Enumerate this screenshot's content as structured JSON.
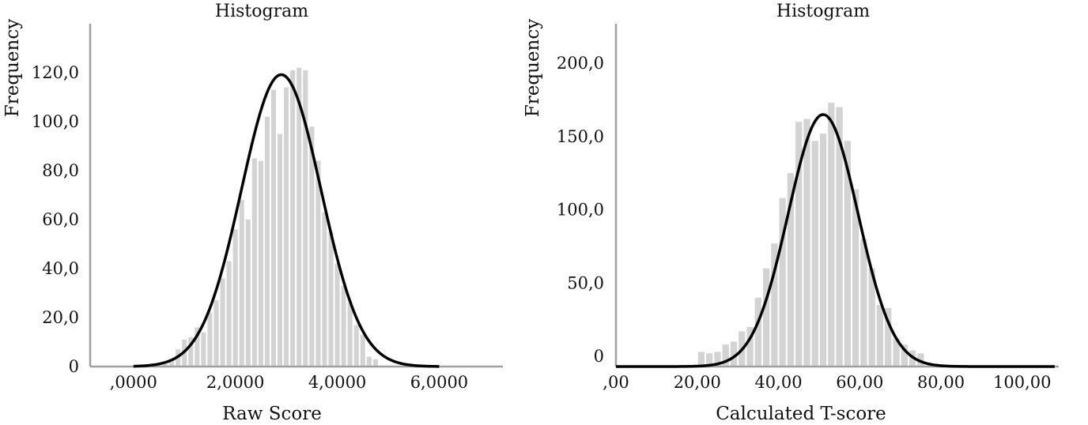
{
  "chart_data": [
    {
      "type": "bar",
      "title": "Histogram",
      "xlabel": "Raw Score",
      "ylabel": "Frequency",
      "xlim": [
        -0.85,
        7.25
      ],
      "ylim": [
        0,
        140
      ],
      "x_ticks": [
        0,
        2,
        4,
        6
      ],
      "x_tick_labels": [
        ",0000",
        "2,0000",
        "4,0000",
        "6,0000"
      ],
      "y_ticks": [
        0,
        20,
        40,
        60,
        80,
        100,
        120
      ],
      "y_tick_labels": [
        "0",
        "20,0",
        "40,0",
        "60,0",
        "80,0",
        "100,0",
        "120,0"
      ],
      "bin_width": 0.125,
      "bars": [
        {
          "x": 0.625,
          "y": 1
        },
        {
          "x": 0.75,
          "y": 3
        },
        {
          "x": 0.875,
          "y": 7
        },
        {
          "x": 1.0,
          "y": 11
        },
        {
          "x": 1.125,
          "y": 12
        },
        {
          "x": 1.25,
          "y": 16
        },
        {
          "x": 1.375,
          "y": 14
        },
        {
          "x": 1.5,
          "y": 22
        },
        {
          "x": 1.625,
          "y": 27
        },
        {
          "x": 1.75,
          "y": 36
        },
        {
          "x": 1.875,
          "y": 43
        },
        {
          "x": 2.0,
          "y": 56
        },
        {
          "x": 2.125,
          "y": 68
        },
        {
          "x": 2.25,
          "y": 60
        },
        {
          "x": 2.375,
          "y": 85
        },
        {
          "x": 2.5,
          "y": 84
        },
        {
          "x": 2.625,
          "y": 102
        },
        {
          "x": 2.75,
          "y": 113
        },
        {
          "x": 2.875,
          "y": 95
        },
        {
          "x": 3.0,
          "y": 114
        },
        {
          "x": 3.125,
          "y": 121
        },
        {
          "x": 3.25,
          "y": 122
        },
        {
          "x": 3.375,
          "y": 121
        },
        {
          "x": 3.5,
          "y": 98
        },
        {
          "x": 3.625,
          "y": 84
        },
        {
          "x": 3.75,
          "y": 63
        },
        {
          "x": 3.875,
          "y": 55
        },
        {
          "x": 4.0,
          "y": 42
        },
        {
          "x": 4.125,
          "y": 33
        },
        {
          "x": 4.25,
          "y": 26
        },
        {
          "x": 4.375,
          "y": 17
        },
        {
          "x": 4.5,
          "y": 13
        },
        {
          "x": 4.625,
          "y": 4
        },
        {
          "x": 4.75,
          "y": 3
        }
      ],
      "curve": {
        "type": "normal",
        "mean": 2.9,
        "sd": 0.78,
        "peak": 119.2,
        "x_from": 0,
        "x_to": 6
      },
      "colors": {
        "bar": "#d3d3d3",
        "curve": "#000000",
        "axis": "#a0a0a0"
      }
    },
    {
      "type": "bar",
      "title": "Histogram",
      "xlabel": "Calculated T-score",
      "ylabel": "Frequency",
      "xlim": [
        0,
        109
      ],
      "ylim": [
        -7,
        227
      ],
      "x_ticks": [
        0,
        20,
        40,
        60,
        80,
        100
      ],
      "x_tick_labels": [
        ",00",
        "20,00",
        "40,00",
        "60,00",
        "80,00",
        "100,00"
      ],
      "y_ticks": [
        0,
        50,
        100,
        150,
        200
      ],
      "y_tick_labels": [
        "0",
        "50,0",
        "100,0",
        "150,0",
        "200,0"
      ],
      "bin_width": 2,
      "bars": [
        {
          "x": 21,
          "y": 3
        },
        {
          "x": 23,
          "y": 2
        },
        {
          "x": 25,
          "y": 3
        },
        {
          "x": 27,
          "y": 8
        },
        {
          "x": 29,
          "y": 10
        },
        {
          "x": 31,
          "y": 17
        },
        {
          "x": 33,
          "y": 20
        },
        {
          "x": 35,
          "y": 40
        },
        {
          "x": 37,
          "y": 60
        },
        {
          "x": 39,
          "y": 77
        },
        {
          "x": 41,
          "y": 108
        },
        {
          "x": 43,
          "y": 125
        },
        {
          "x": 45,
          "y": 160
        },
        {
          "x": 47,
          "y": 162
        },
        {
          "x": 49,
          "y": 147
        },
        {
          "x": 51,
          "y": 152
        },
        {
          "x": 53,
          "y": 173
        },
        {
          "x": 55,
          "y": 170
        },
        {
          "x": 57,
          "y": 147
        },
        {
          "x": 59,
          "y": 114
        },
        {
          "x": 61,
          "y": 80
        },
        {
          "x": 63,
          "y": 60
        },
        {
          "x": 65,
          "y": 35
        },
        {
          "x": 67,
          "y": 33
        },
        {
          "x": 69,
          "y": 12
        },
        {
          "x": 71,
          "y": 8
        },
        {
          "x": 73,
          "y": 4
        },
        {
          "x": 75,
          "y": 2
        }
      ],
      "curve": {
        "type": "normal",
        "mean": 51,
        "sd": 8.6,
        "peak": 165,
        "x_from": 0,
        "x_to": 108,
        "baseline": -7
      },
      "colors": {
        "bar": "#d3d3d3",
        "curve": "#000000",
        "axis": "#a0a0a0"
      }
    }
  ]
}
